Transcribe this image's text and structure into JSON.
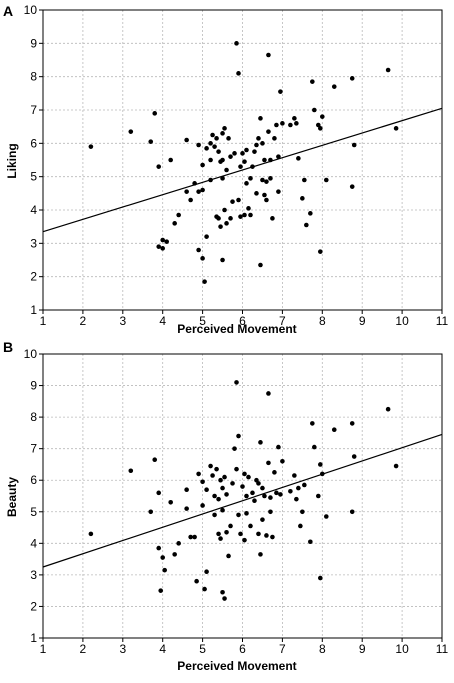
{
  "chart_data": [
    {
      "panel": "A",
      "type": "scatter",
      "xlabel": "Perceived Movement",
      "ylabel": "Liking",
      "xlim": [
        1,
        11
      ],
      "ylim": [
        1,
        10
      ],
      "xticks": [
        1,
        2,
        3,
        4,
        5,
        6,
        7,
        8,
        9,
        10,
        11
      ],
      "yticks": [
        1,
        2,
        3,
        4,
        5,
        6,
        7,
        8,
        9,
        10
      ],
      "grid": true,
      "fit_line": {
        "x": [
          1,
          11
        ],
        "y": [
          3.35,
          7.05
        ]
      },
      "points": [
        [
          2.2,
          5.9
        ],
        [
          3.2,
          6.35
        ],
        [
          3.7,
          6.05
        ],
        [
          3.8,
          6.9
        ],
        [
          3.9,
          5.3
        ],
        [
          3.9,
          2.9
        ],
        [
          4.0,
          2.85
        ],
        [
          4.0,
          3.1
        ],
        [
          4.1,
          3.05
        ],
        [
          4.2,
          5.5
        ],
        [
          4.3,
          3.6
        ],
        [
          4.4,
          3.85
        ],
        [
          4.6,
          4.55
        ],
        [
          4.6,
          6.1
        ],
        [
          4.7,
          4.3
        ],
        [
          4.8,
          4.8
        ],
        [
          4.9,
          2.8
        ],
        [
          4.9,
          5.95
        ],
        [
          4.9,
          4.55
        ],
        [
          5.0,
          4.6
        ],
        [
          5.0,
          5.35
        ],
        [
          5.0,
          2.55
        ],
        [
          5.05,
          1.85
        ],
        [
          5.1,
          5.85
        ],
        [
          5.1,
          3.2
        ],
        [
          5.2,
          6.0
        ],
        [
          5.2,
          5.5
        ],
        [
          5.2,
          4.9
        ],
        [
          5.25,
          6.25
        ],
        [
          5.3,
          5.9
        ],
        [
          5.35,
          6.15
        ],
        [
          5.35,
          3.8
        ],
        [
          5.4,
          5.75
        ],
        [
          5.4,
          3.75
        ],
        [
          5.45,
          5.45
        ],
        [
          5.45,
          3.5
        ],
        [
          5.5,
          6.3
        ],
        [
          5.5,
          5.5
        ],
        [
          5.5,
          4.95
        ],
        [
          5.5,
          2.5
        ],
        [
          5.55,
          6.45
        ],
        [
          5.55,
          4.0
        ],
        [
          5.6,
          5.2
        ],
        [
          5.6,
          3.6
        ],
        [
          5.65,
          6.15
        ],
        [
          5.7,
          5.6
        ],
        [
          5.7,
          3.75
        ],
        [
          5.75,
          4.25
        ],
        [
          5.8,
          5.7
        ],
        [
          5.85,
          9.0
        ],
        [
          5.9,
          8.1
        ],
        [
          5.9,
          4.3
        ],
        [
          5.95,
          5.3
        ],
        [
          5.95,
          3.8
        ],
        [
          6.0,
          5.7
        ],
        [
          6.05,
          5.45
        ],
        [
          6.05,
          3.85
        ],
        [
          6.1,
          5.8
        ],
        [
          6.1,
          4.8
        ],
        [
          6.15,
          4.05
        ],
        [
          6.2,
          4.95
        ],
        [
          6.2,
          3.85
        ],
        [
          6.25,
          5.3
        ],
        [
          6.3,
          5.75
        ],
        [
          6.35,
          5.95
        ],
        [
          6.35,
          4.5
        ],
        [
          6.4,
          6.15
        ],
        [
          6.45,
          6.75
        ],
        [
          6.45,
          2.35
        ],
        [
          6.5,
          6.0
        ],
        [
          6.5,
          4.9
        ],
        [
          6.55,
          5.5
        ],
        [
          6.55,
          4.45
        ],
        [
          6.6,
          4.85
        ],
        [
          6.6,
          4.3
        ],
        [
          6.65,
          8.65
        ],
        [
          6.65,
          6.35
        ],
        [
          6.7,
          5.5
        ],
        [
          6.7,
          4.95
        ],
        [
          6.75,
          3.75
        ],
        [
          6.8,
          6.15
        ],
        [
          6.85,
          6.55
        ],
        [
          6.9,
          5.6
        ],
        [
          6.9,
          4.55
        ],
        [
          6.95,
          7.55
        ],
        [
          7.0,
          6.6
        ],
        [
          7.2,
          6.55
        ],
        [
          7.3,
          6.75
        ],
        [
          7.35,
          6.6
        ],
        [
          7.4,
          5.55
        ],
        [
          7.5,
          4.35
        ],
        [
          7.55,
          4.9
        ],
        [
          7.6,
          3.55
        ],
        [
          7.7,
          3.9
        ],
        [
          7.75,
          7.85
        ],
        [
          7.8,
          7.0
        ],
        [
          7.9,
          6.55
        ],
        [
          7.95,
          6.45
        ],
        [
          7.95,
          2.75
        ],
        [
          8.0,
          6.8
        ],
        [
          8.1,
          4.9
        ],
        [
          8.3,
          7.7
        ],
        [
          8.75,
          7.95
        ],
        [
          8.75,
          4.7
        ],
        [
          8.8,
          5.95
        ],
        [
          9.65,
          8.2
        ],
        [
          9.85,
          6.45
        ]
      ]
    },
    {
      "panel": "B",
      "type": "scatter",
      "xlabel": "Perceived Movement",
      "ylabel": "Beauty",
      "xlim": [
        1,
        11
      ],
      "ylim": [
        1,
        10
      ],
      "xticks": [
        1,
        2,
        3,
        4,
        5,
        6,
        7,
        8,
        9,
        10,
        11
      ],
      "yticks": [
        1,
        2,
        3,
        4,
        5,
        6,
        7,
        8,
        9,
        10
      ],
      "grid": true,
      "fit_line": {
        "x": [
          1,
          11
        ],
        "y": [
          3.25,
          7.45
        ]
      },
      "points": [
        [
          2.2,
          4.3
        ],
        [
          3.2,
          6.3
        ],
        [
          3.7,
          5.0
        ],
        [
          3.8,
          6.65
        ],
        [
          3.9,
          5.6
        ],
        [
          3.9,
          3.85
        ],
        [
          3.95,
          2.5
        ],
        [
          4.0,
          3.55
        ],
        [
          4.05,
          3.15
        ],
        [
          4.2,
          5.3
        ],
        [
          4.3,
          3.65
        ],
        [
          4.4,
          4.0
        ],
        [
          4.6,
          5.1
        ],
        [
          4.6,
          5.7
        ],
        [
          4.7,
          4.2
        ],
        [
          4.8,
          4.2
        ],
        [
          4.85,
          2.8
        ],
        [
          4.9,
          6.2
        ],
        [
          5.0,
          5.95
        ],
        [
          5.0,
          5.2
        ],
        [
          5.05,
          2.55
        ],
        [
          5.1,
          3.1
        ],
        [
          5.1,
          5.7
        ],
        [
          5.2,
          6.45
        ],
        [
          5.25,
          6.15
        ],
        [
          5.3,
          5.5
        ],
        [
          5.3,
          4.9
        ],
        [
          5.35,
          6.35
        ],
        [
          5.4,
          5.4
        ],
        [
          5.4,
          4.3
        ],
        [
          5.45,
          6.0
        ],
        [
          5.45,
          4.15
        ],
        [
          5.5,
          5.75
        ],
        [
          5.5,
          5.05
        ],
        [
          5.5,
          2.45
        ],
        [
          5.55,
          2.25
        ],
        [
          5.55,
          6.1
        ],
        [
          5.6,
          5.55
        ],
        [
          5.6,
          4.35
        ],
        [
          5.65,
          3.6
        ],
        [
          5.7,
          4.55
        ],
        [
          5.75,
          5.9
        ],
        [
          5.8,
          7.0
        ],
        [
          5.85,
          6.35
        ],
        [
          5.85,
          9.1
        ],
        [
          5.9,
          7.4
        ],
        [
          5.9,
          4.9
        ],
        [
          5.95,
          4.3
        ],
        [
          6.0,
          5.8
        ],
        [
          6.05,
          6.2
        ],
        [
          6.05,
          4.1
        ],
        [
          6.1,
          5.5
        ],
        [
          6.1,
          4.95
        ],
        [
          6.15,
          6.1
        ],
        [
          6.2,
          4.55
        ],
        [
          6.25,
          5.6
        ],
        [
          6.3,
          5.35
        ],
        [
          6.35,
          6.0
        ],
        [
          6.4,
          4.3
        ],
        [
          6.4,
          5.9
        ],
        [
          6.45,
          7.2
        ],
        [
          6.45,
          3.65
        ],
        [
          6.5,
          5.75
        ],
        [
          6.5,
          4.75
        ],
        [
          6.55,
          5.5
        ],
        [
          6.6,
          4.25
        ],
        [
          6.65,
          8.75
        ],
        [
          6.65,
          6.55
        ],
        [
          6.7,
          5.45
        ],
        [
          6.7,
          5.0
        ],
        [
          6.75,
          4.2
        ],
        [
          6.8,
          6.25
        ],
        [
          6.85,
          5.6
        ],
        [
          6.9,
          7.05
        ],
        [
          6.95,
          5.55
        ],
        [
          7.0,
          6.6
        ],
        [
          7.2,
          5.65
        ],
        [
          7.3,
          6.15
        ],
        [
          7.35,
          5.4
        ],
        [
          7.4,
          5.75
        ],
        [
          7.45,
          4.55
        ],
        [
          7.5,
          5.0
        ],
        [
          7.55,
          5.85
        ],
        [
          7.7,
          4.05
        ],
        [
          7.75,
          7.8
        ],
        [
          7.8,
          7.05
        ],
        [
          7.9,
          5.5
        ],
        [
          7.95,
          6.5
        ],
        [
          7.95,
          2.9
        ],
        [
          8.0,
          6.2
        ],
        [
          8.1,
          4.85
        ],
        [
          8.3,
          7.6
        ],
        [
          8.75,
          7.8
        ],
        [
          8.75,
          5.0
        ],
        [
          8.8,
          6.75
        ],
        [
          9.65,
          8.25
        ],
        [
          9.85,
          6.45
        ]
      ]
    }
  ]
}
